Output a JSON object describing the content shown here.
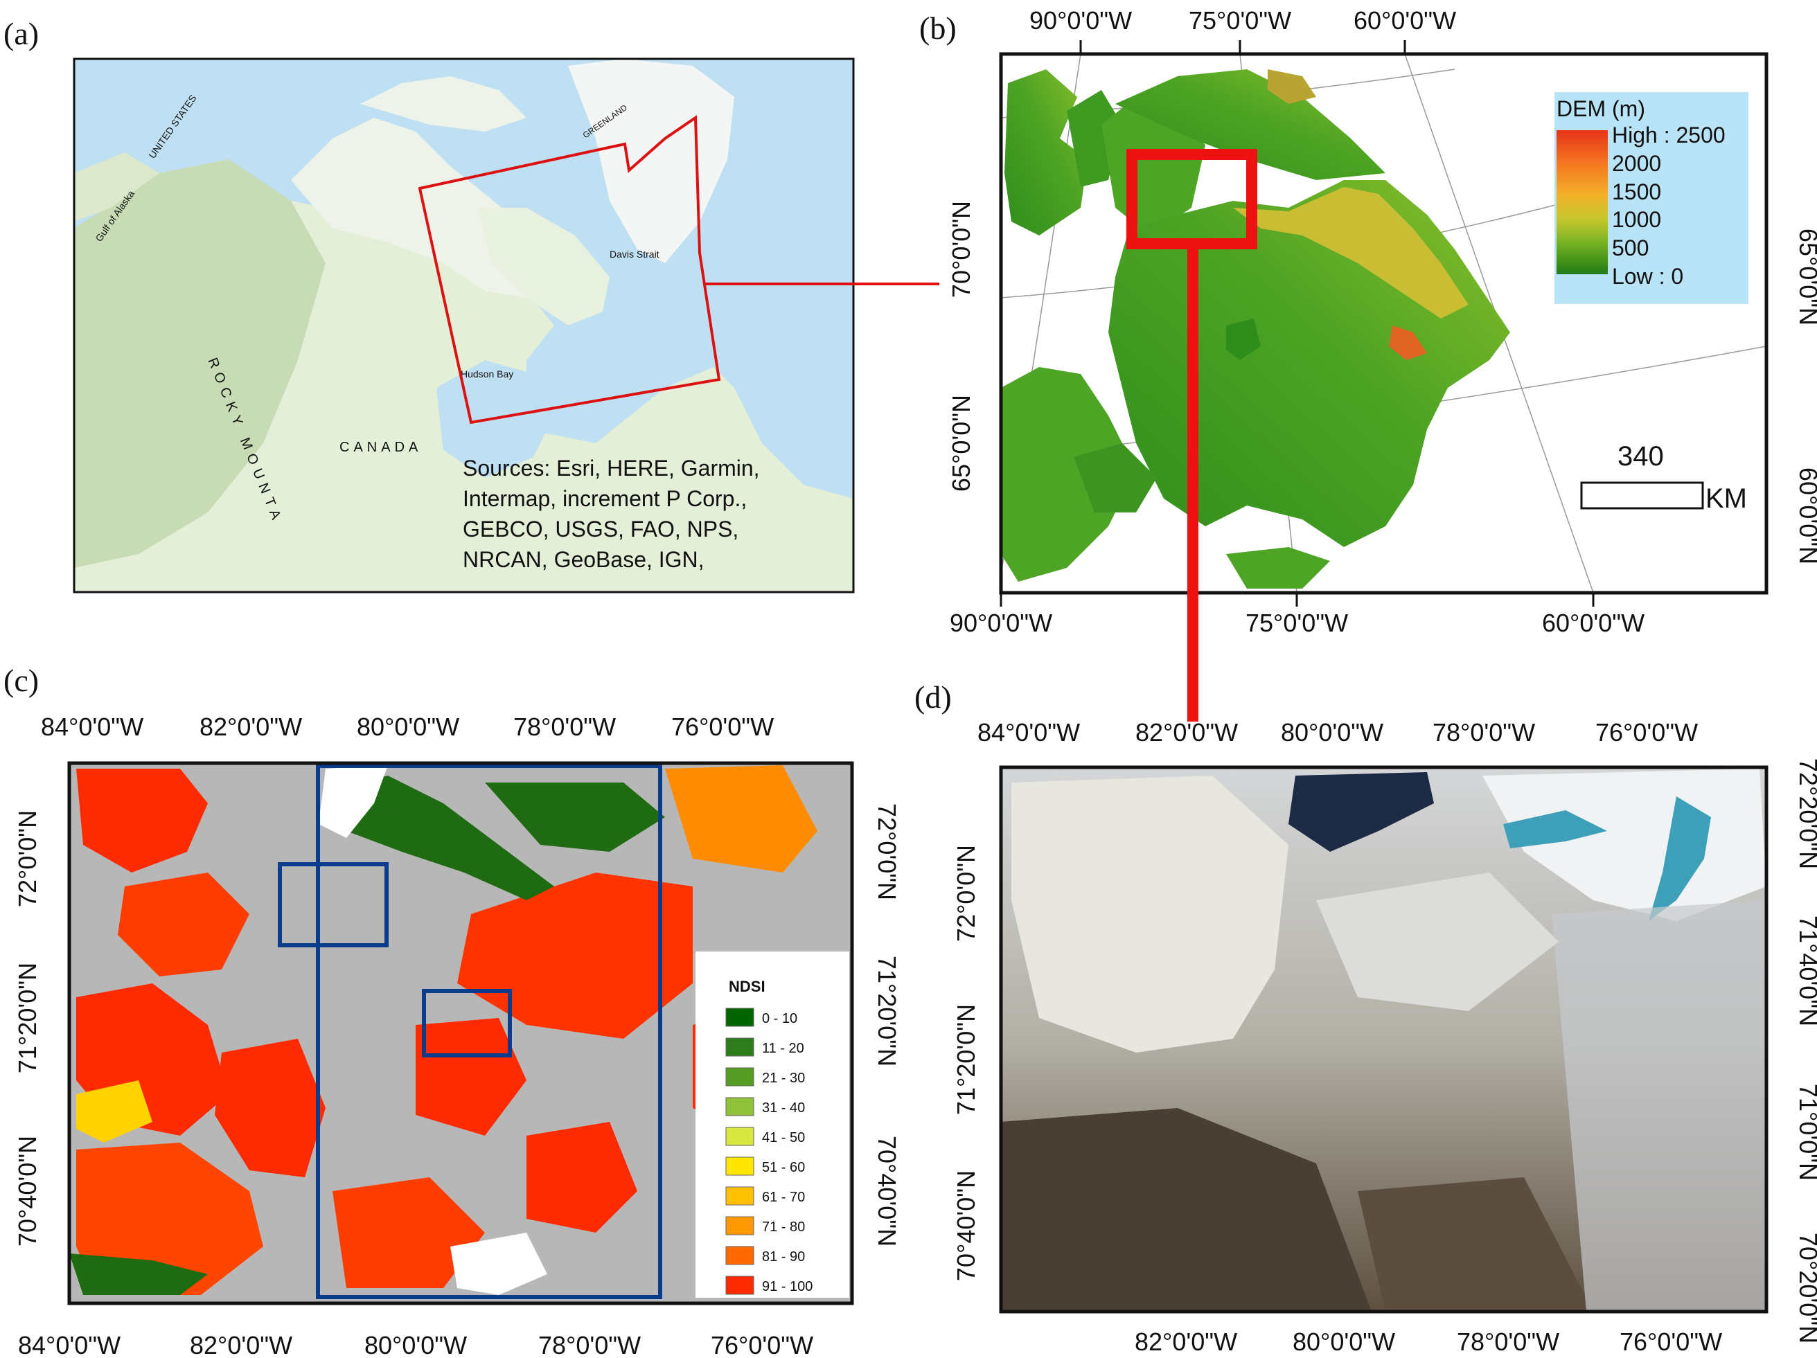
{
  "figure": {
    "panel_labels": [
      "(a)",
      "(b)",
      "(c)",
      "(d)"
    ]
  },
  "panel_a": {
    "places": {
      "canada": "CANADA",
      "rocky": "ROCKY MOUNTA",
      "hudson_bay": "Hudson Bay",
      "davis_strait": "Davis Strait",
      "gulf_of_alaska": "Gulf of Alaska",
      "greenland": "GREENLAND",
      "united_states": "UNITED STATES"
    },
    "sources": [
      "Sources: Esri, HERE, Garmin,",
      "Intermap, increment P Corp.,",
      "GEBCO, USGS, FAO, NPS,",
      "NRCAN, GeoBase, IGN,"
    ],
    "colors": {
      "ocean": "#bfe0f2",
      "land": "#e3efd6",
      "frame": "#dd1111"
    }
  },
  "panel_b": {
    "top_ticks": [
      "90°0'0\"W",
      "75°0'0\"W",
      "60°0'0\"W"
    ],
    "bottom_ticks": [
      "90°0'0\"W",
      "75°0'0\"W",
      "60°0'0\"W"
    ],
    "left_ticks": [
      "70°0'0\"N",
      "65°0'0\"N"
    ],
    "right_ticks": [
      "65°0'0\"N",
      "60°0'0\"N"
    ],
    "legend": {
      "title": "DEM (m)",
      "labels": [
        "High : 2500",
        "2000",
        "1500",
        "1000",
        "500",
        "Low : 0"
      ],
      "gradient": [
        "#e8331a",
        "#f47c20",
        "#f2b028",
        "#c5c82e",
        "#6faf22",
        "#1f7a14"
      ],
      "background": "#b9e3f7"
    },
    "scale_bar": {
      "value": "340",
      "unit": "KM"
    }
  },
  "panel_c": {
    "top_ticks": [
      "84°0'0\"W",
      "82°0'0\"W",
      "80°0'0\"W",
      "78°0'0\"W",
      "76°0'0\"W"
    ],
    "bottom_ticks": [
      "84°0'0\"W",
      "82°0'0\"W",
      "80°0'0\"W",
      "78°0'0\"W",
      "76°0'0\"W"
    ],
    "left_ticks": [
      "72°0'0\"N",
      "71°20'0\"N",
      "70°40'0\"N"
    ],
    "right_ticks": [
      "72°0'0\"N",
      "71°20'0\"N",
      "70°40'0\"N"
    ],
    "legend": {
      "title": "NDSI",
      "classes": [
        {
          "label": "0 - 10",
          "color": "#006400"
        },
        {
          "label": "11 - 20",
          "color": "#2e7d1c"
        },
        {
          "label": "21 - 30",
          "color": "#559b24"
        },
        {
          "label": "31 - 40",
          "color": "#8fc23a"
        },
        {
          "label": "41 - 50",
          "color": "#d8e640"
        },
        {
          "label": "51 - 60",
          "color": "#ffe600"
        },
        {
          "label": "61 - 70",
          "color": "#ffc000"
        },
        {
          "label": "71 - 80",
          "color": "#ff9900"
        },
        {
          "label": "81 - 90",
          "color": "#ff6a00"
        },
        {
          "label": "91 - 100",
          "color": "#ff2a00"
        }
      ]
    },
    "colors": {
      "background": "#b7b7b7",
      "box": "#0b3b8c"
    }
  },
  "panel_d": {
    "top_ticks": [
      "84°0'0\"W",
      "82°0'0\"W",
      "80°0'0\"W",
      "78°0'0\"W",
      "76°0'0\"W"
    ],
    "bottom_ticks": [
      "82°0'0\"W",
      "80°0'0\"W",
      "78°0'0\"W",
      "76°0'0\"W"
    ],
    "left_ticks": [
      "72°0'0\"N",
      "71°20'0\"N",
      "70°40'0\"N"
    ],
    "right_ticks": [
      "72°20'0\"N",
      "71°40'0\"N",
      "71°0'0\"N",
      "70°20'0\"N"
    ]
  }
}
